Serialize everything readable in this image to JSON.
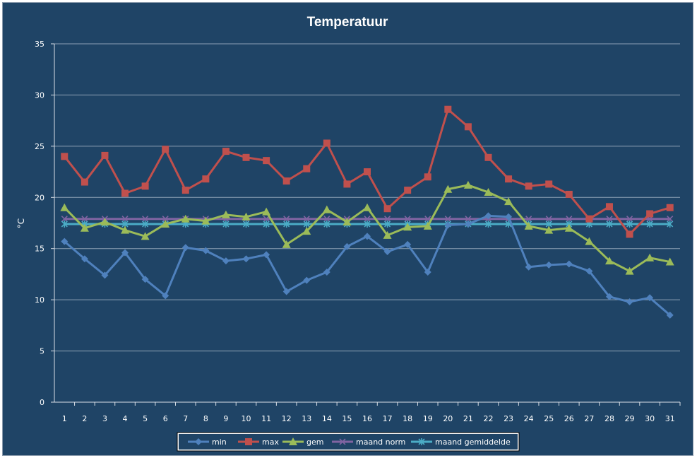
{
  "chart_data": {
    "type": "line",
    "title": "Temperatuur",
    "xlabel": "",
    "ylabel": "°C",
    "ylim": [
      0,
      35
    ],
    "yticks": [
      0,
      5,
      10,
      15,
      20,
      25,
      30,
      35
    ],
    "grid": "horizontal",
    "legend_position": "bottom",
    "categories": [
      "1",
      "2",
      "3",
      "4",
      "5",
      "6",
      "7",
      "8",
      "9",
      "10",
      "11",
      "12",
      "13",
      "14",
      "15",
      "16",
      "17",
      "18",
      "19",
      "20",
      "21",
      "22",
      "23",
      "24",
      "25",
      "26",
      "27",
      "28",
      "29",
      "30",
      "31"
    ],
    "series": [
      {
        "name": "min",
        "color": "#4f81bd",
        "marker": "diamond",
        "values": [
          15.7,
          14.0,
          12.4,
          14.6,
          12.0,
          10.4,
          15.1,
          14.8,
          13.8,
          14.0,
          14.4,
          10.8,
          11.9,
          12.7,
          15.2,
          16.2,
          14.7,
          15.4,
          12.7,
          17.3,
          17.4,
          18.2,
          18.1,
          13.2,
          13.4,
          13.5,
          12.8,
          10.3,
          9.8,
          10.2,
          8.5
        ]
      },
      {
        "name": "max",
        "color": "#c0504d",
        "marker": "square",
        "values": [
          24.0,
          21.5,
          24.1,
          20.4,
          21.1,
          24.7,
          20.7,
          21.8,
          24.5,
          23.9,
          23.6,
          21.6,
          22.8,
          25.3,
          21.3,
          22.5,
          18.9,
          20.7,
          22.0,
          28.6,
          26.9,
          23.9,
          21.8,
          21.1,
          21.3,
          20.3,
          17.9,
          19.1,
          16.4,
          18.4,
          19.0
        ]
      },
      {
        "name": "gem",
        "color": "#9bbb59",
        "marker": "triangle",
        "values": [
          19.0,
          17.0,
          17.6,
          16.8,
          16.2,
          17.4,
          17.9,
          17.7,
          18.3,
          18.1,
          18.6,
          15.4,
          16.7,
          18.8,
          17.6,
          19.0,
          16.3,
          17.1,
          17.2,
          20.8,
          21.2,
          20.5,
          19.6,
          17.2,
          16.8,
          17.0,
          15.7,
          13.8,
          12.8,
          14.1,
          13.7
        ]
      },
      {
        "name": "maand norm",
        "color": "#8064a2",
        "marker": "x",
        "values": [
          17.9,
          17.9,
          17.9,
          17.9,
          17.9,
          17.9,
          17.9,
          17.9,
          17.9,
          17.9,
          17.9,
          17.9,
          17.9,
          17.9,
          17.9,
          17.9,
          17.9,
          17.9,
          17.9,
          17.9,
          17.9,
          17.9,
          17.9,
          17.9,
          17.9,
          17.9,
          17.9,
          17.9,
          17.9,
          17.9,
          17.9
        ]
      },
      {
        "name": "maand gemiddelde",
        "color": "#4bacc6",
        "marker": "asterisk",
        "values": [
          17.4,
          17.4,
          17.4,
          17.4,
          17.4,
          17.4,
          17.4,
          17.4,
          17.4,
          17.4,
          17.4,
          17.4,
          17.4,
          17.4,
          17.4,
          17.4,
          17.4,
          17.4,
          17.4,
          17.4,
          17.4,
          17.4,
          17.4,
          17.4,
          17.4,
          17.4,
          17.4,
          17.4,
          17.4,
          17.4,
          17.4
        ]
      }
    ]
  },
  "colors": {
    "background": "#1f4466",
    "legend_background": "#ffffff",
    "text": "#ffffff",
    "axis": "#d8dee6"
  }
}
